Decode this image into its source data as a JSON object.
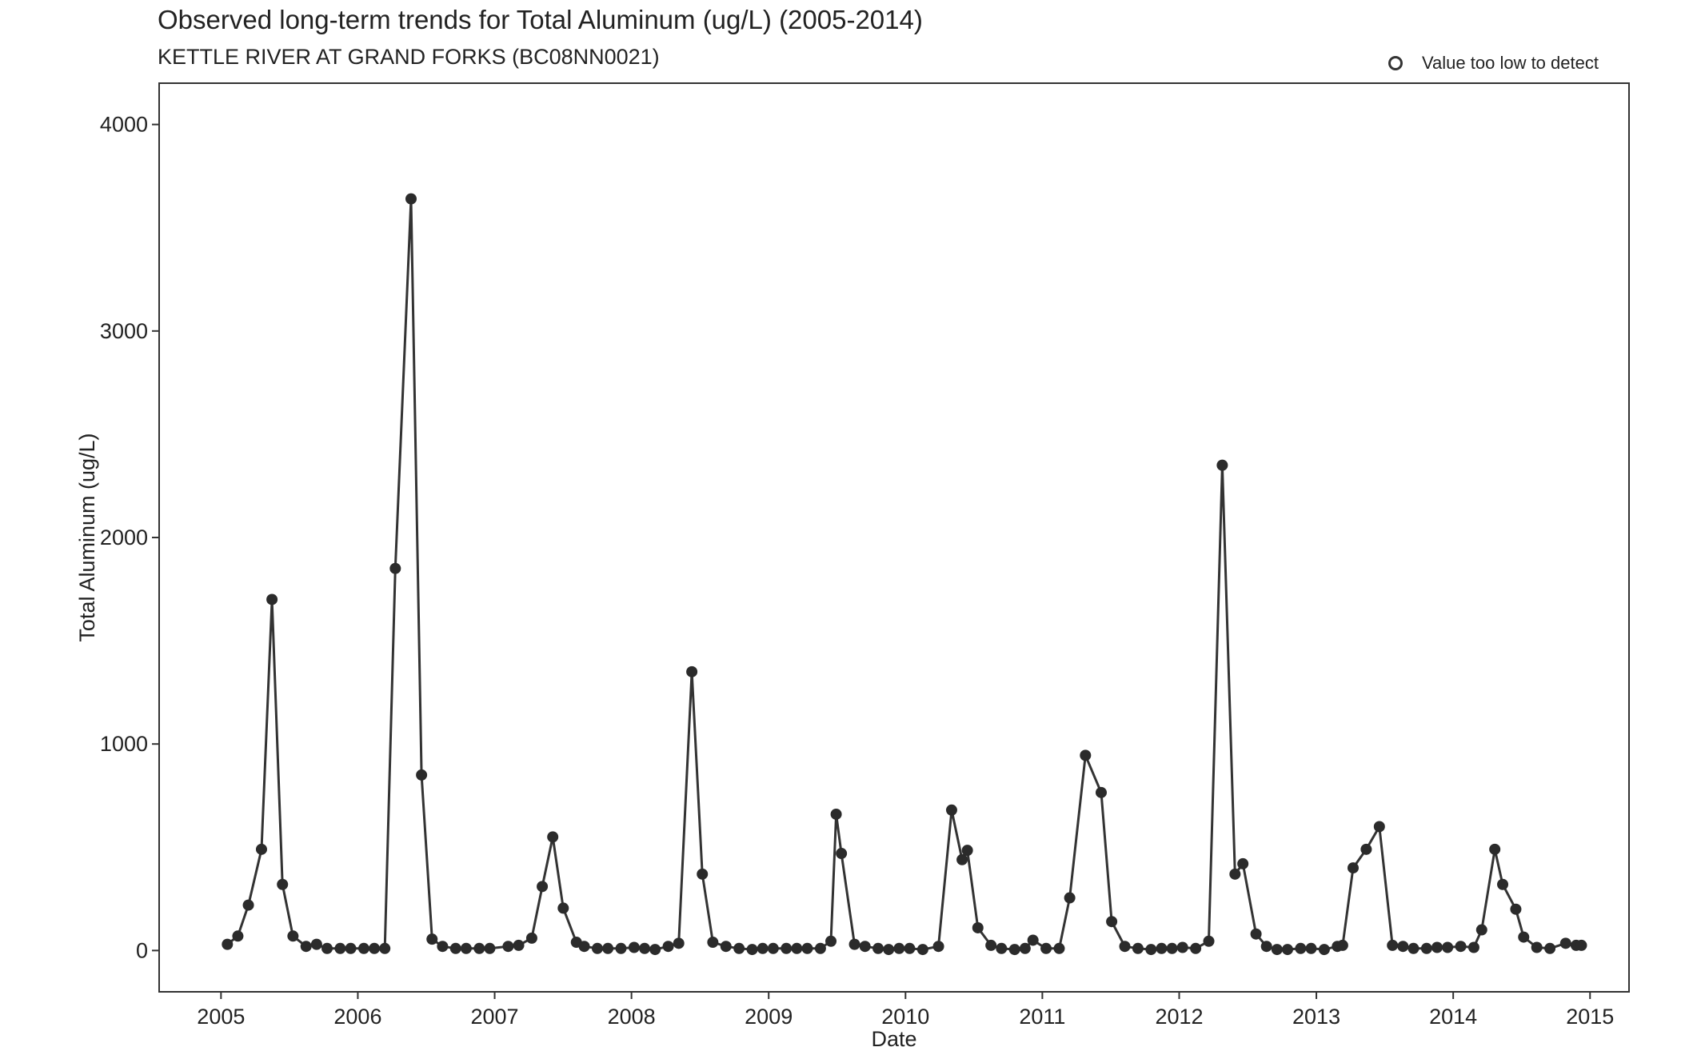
{
  "chart_data": {
    "type": "line",
    "title": "Observed long-term trends for Total Aluminum (ug/L) (2005-2014)",
    "subtitle": "KETTLE RIVER AT GRAND FORKS (BC08NN0021)",
    "xlabel": "Date",
    "ylabel": "Total Aluminum (ug/L)",
    "xlim": [
      "2004-07-20",
      "2015-04-15"
    ],
    "ylim": [
      -200,
      4200
    ],
    "x_ticks": [
      "2005",
      "2006",
      "2007",
      "2008",
      "2009",
      "2010",
      "2011",
      "2012",
      "2013",
      "2014",
      "2015"
    ],
    "y_ticks": [
      "0",
      "1000",
      "2000",
      "3000",
      "4000"
    ],
    "grid": false,
    "legend": {
      "position": "top-right",
      "entries": [
        {
          "label": "Value too low to detect",
          "marker": "open-circle"
        }
      ]
    },
    "colors": {
      "line": "#333333",
      "point": "#2b2b2b",
      "axis": "#333333"
    },
    "series": [
      {
        "points": [
          [
            "2005-01-18",
            30
          ],
          [
            "2005-02-15",
            70
          ],
          [
            "2005-03-15",
            220
          ],
          [
            "2005-04-19",
            490
          ],
          [
            "2005-05-17",
            1700
          ],
          [
            "2005-06-14",
            320
          ],
          [
            "2005-07-12",
            70
          ],
          [
            "2005-08-16",
            20
          ],
          [
            "2005-09-13",
            30
          ],
          [
            "2005-10-11",
            10
          ],
          [
            "2005-11-15",
            10
          ],
          [
            "2005-12-13",
            10
          ],
          [
            "2006-01-17",
            10
          ],
          [
            "2006-02-14",
            10
          ],
          [
            "2006-03-14",
            10
          ],
          [
            "2006-04-11",
            1850
          ],
          [
            "2006-05-23",
            3640
          ],
          [
            "2006-06-20",
            850
          ],
          [
            "2006-07-18",
            55
          ],
          [
            "2006-08-15",
            20
          ],
          [
            "2006-09-19",
            10
          ],
          [
            "2006-10-17",
            10
          ],
          [
            "2006-11-21",
            10
          ],
          [
            "2006-12-19",
            10
          ],
          [
            "2007-02-06",
            20
          ],
          [
            "2007-03-06",
            25
          ],
          [
            "2007-04-10",
            60
          ],
          [
            "2007-05-08",
            310
          ],
          [
            "2007-06-05",
            550
          ],
          [
            "2007-07-03",
            205
          ],
          [
            "2007-08-07",
            40
          ],
          [
            "2007-08-28",
            20
          ],
          [
            "2007-10-02",
            10
          ],
          [
            "2007-10-30",
            10
          ],
          [
            "2007-12-04",
            10
          ],
          [
            "2008-01-08",
            15
          ],
          [
            "2008-02-05",
            10
          ],
          [
            "2008-03-04",
            5
          ],
          [
            "2008-04-08",
            20
          ],
          [
            "2008-05-06",
            35
          ],
          [
            "2008-06-10",
            1350
          ],
          [
            "2008-07-08",
            370
          ],
          [
            "2008-08-05",
            40
          ],
          [
            "2008-09-09",
            20
          ],
          [
            "2008-10-14",
            10
          ],
          [
            "2008-11-18",
            5
          ],
          [
            "2008-12-16",
            10
          ],
          [
            "2009-01-13",
            10
          ],
          [
            "2009-02-17",
            10
          ],
          [
            "2009-03-17",
            10
          ],
          [
            "2009-04-14",
            10
          ],
          [
            "2009-05-19",
            10
          ],
          [
            "2009-06-16",
            45
          ],
          [
            "2009-06-30",
            660
          ],
          [
            "2009-07-14",
            470
          ],
          [
            "2009-08-18",
            30
          ],
          [
            "2009-09-15",
            20
          ],
          [
            "2009-10-20",
            10
          ],
          [
            "2009-11-17",
            5
          ],
          [
            "2009-12-15",
            10
          ],
          [
            "2010-01-12",
            10
          ],
          [
            "2010-02-16",
            5
          ],
          [
            "2010-03-30",
            20
          ],
          [
            "2010-05-04",
            680
          ],
          [
            "2010-06-01",
            440
          ],
          [
            "2010-06-15",
            485
          ],
          [
            "2010-07-13",
            110
          ],
          [
            "2010-08-17",
            25
          ],
          [
            "2010-09-14",
            10
          ],
          [
            "2010-10-19",
            5
          ],
          [
            "2010-11-16",
            10
          ],
          [
            "2010-12-07",
            50
          ],
          [
            "2011-01-11",
            10
          ],
          [
            "2011-02-15",
            10
          ],
          [
            "2011-03-15",
            255
          ],
          [
            "2011-04-26",
            945
          ],
          [
            "2011-06-07",
            765
          ],
          [
            "2011-07-05",
            140
          ],
          [
            "2011-08-09",
            20
          ],
          [
            "2011-09-13",
            10
          ],
          [
            "2011-10-18",
            5
          ],
          [
            "2011-11-15",
            10
          ],
          [
            "2011-12-13",
            10
          ],
          [
            "2012-01-10",
            15
          ],
          [
            "2012-02-14",
            10
          ],
          [
            "2012-03-20",
            45
          ],
          [
            "2012-04-25",
            2350
          ],
          [
            "2012-05-29",
            370
          ],
          [
            "2012-06-19",
            420
          ],
          [
            "2012-07-24",
            80
          ],
          [
            "2012-08-21",
            20
          ],
          [
            "2012-09-18",
            5
          ],
          [
            "2012-10-16",
            5
          ],
          [
            "2012-11-20",
            10
          ],
          [
            "2012-12-18",
            10
          ],
          [
            "2013-01-22",
            5
          ],
          [
            "2013-02-26",
            20
          ],
          [
            "2013-03-12",
            25
          ],
          [
            "2013-04-09",
            400
          ],
          [
            "2013-05-14",
            490
          ],
          [
            "2013-06-18",
            600
          ],
          [
            "2013-07-23",
            25
          ],
          [
            "2013-08-20",
            20
          ],
          [
            "2013-09-17",
            10
          ],
          [
            "2013-10-22",
            10
          ],
          [
            "2013-11-19",
            15
          ],
          [
            "2013-12-17",
            15
          ],
          [
            "2014-01-21",
            20
          ],
          [
            "2014-02-25",
            15
          ],
          [
            "2014-03-18",
            100
          ],
          [
            "2014-04-22",
            490
          ],
          [
            "2014-05-13",
            320
          ],
          [
            "2014-06-17",
            200
          ],
          [
            "2014-07-08",
            65
          ],
          [
            "2014-08-12",
            15
          ],
          [
            "2014-09-16",
            10
          ],
          [
            "2014-10-28",
            35
          ],
          [
            "2014-11-25",
            25
          ],
          [
            "2014-12-09",
            25
          ]
        ]
      }
    ]
  }
}
